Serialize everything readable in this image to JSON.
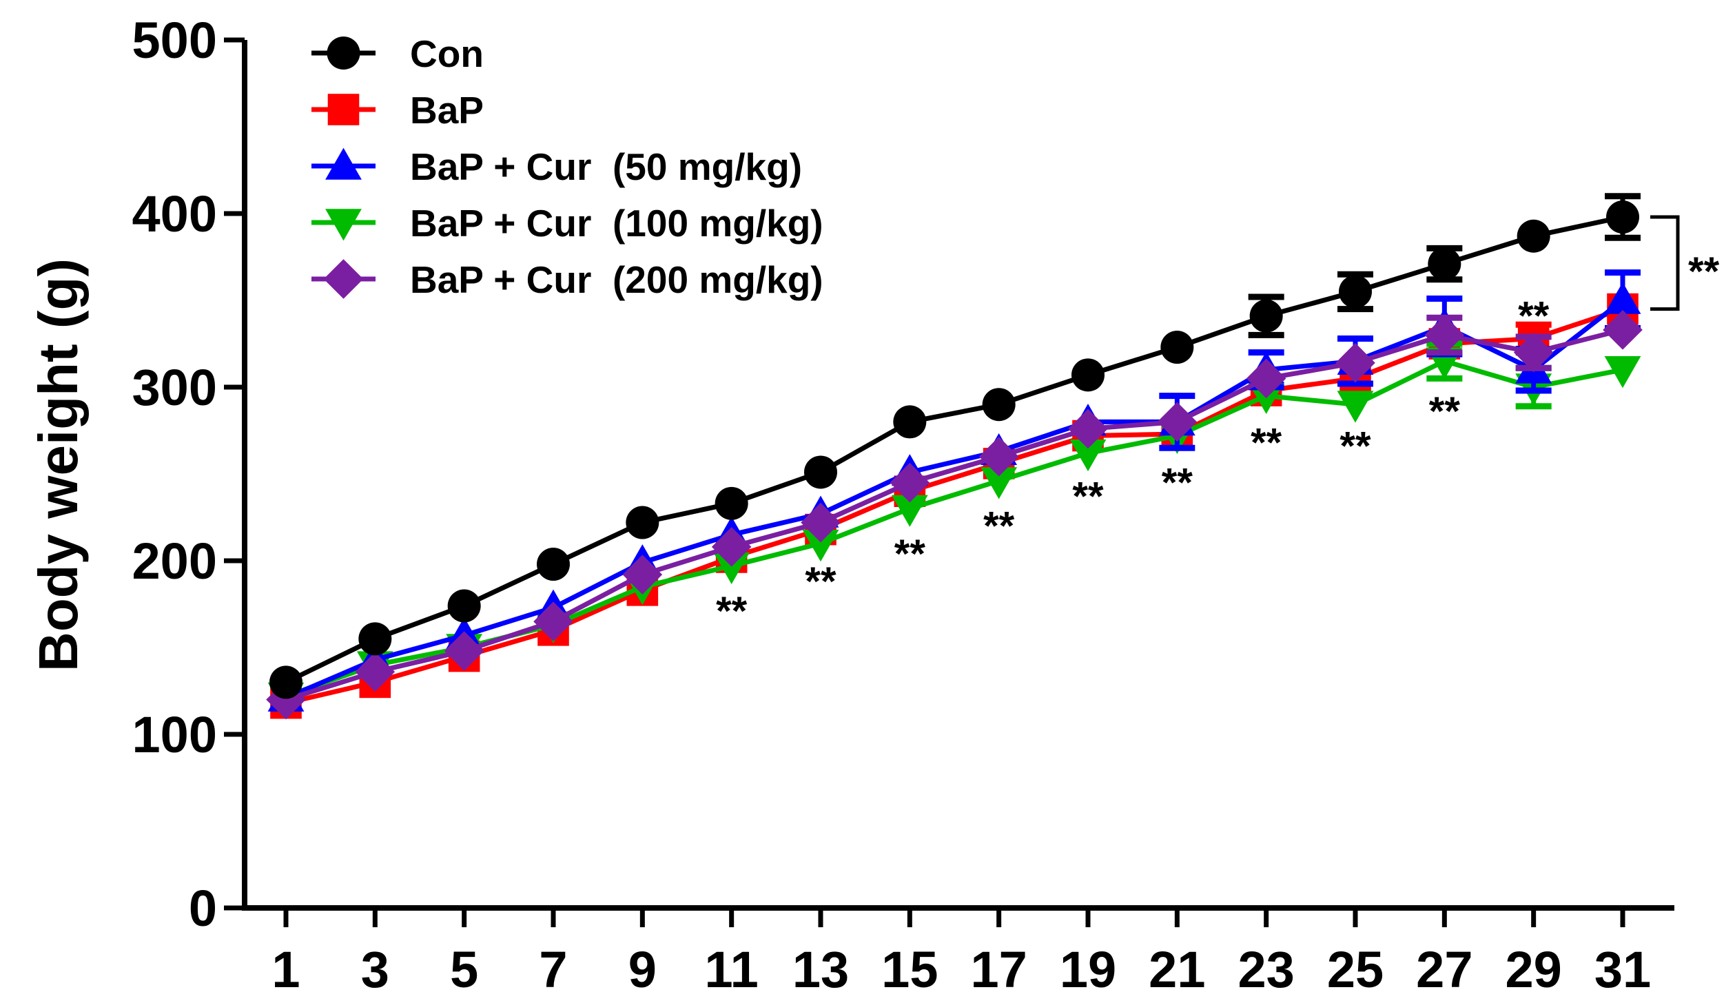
{
  "chart_data": {
    "type": "line",
    "title": "",
    "xlabel": "",
    "ylabel": "Body weight (g)",
    "xlim": [
      0,
      32
    ],
    "ylim": [
      0,
      500
    ],
    "x": [
      1,
      3,
      5,
      7,
      9,
      11,
      13,
      15,
      17,
      19,
      21,
      23,
      25,
      27,
      29,
      31
    ],
    "x_ticks": [
      "1",
      "3",
      "5",
      "7",
      "9",
      "11",
      "13",
      "15",
      "17",
      "19",
      "21",
      "23",
      "25",
      "27",
      "29",
      "31"
    ],
    "y_ticks": [
      "0",
      "100",
      "200",
      "300",
      "400",
      "500"
    ],
    "series": [
      {
        "name": "Con",
        "color": "#000000",
        "marker": "circle",
        "values": [
          130,
          155,
          174,
          198,
          222,
          233,
          251,
          280,
          290,
          307,
          323,
          341,
          355,
          371,
          387,
          398
        ],
        "errors": [
          0,
          0,
          0,
          0,
          0,
          0,
          0,
          0,
          0,
          0,
          0,
          11,
          10,
          9,
          0,
          12
        ]
      },
      {
        "name": "BaP",
        "color": "#ff0000",
        "marker": "square",
        "values": [
          118,
          130,
          145,
          160,
          183,
          202,
          218,
          240,
          256,
          272,
          273,
          298,
          305,
          325,
          328,
          345
        ],
        "errors": [
          0,
          0,
          0,
          0,
          0,
          0,
          0,
          0,
          0,
          0,
          0,
          0,
          0,
          0,
          8,
          0
        ]
      },
      {
        "name": "BaP + Cur  (50 mg/kg)",
        "color": "#0000ff",
        "marker": "triangle-up",
        "values": [
          121,
          143,
          157,
          173,
          199,
          215,
          227,
          251,
          263,
          280,
          280,
          310,
          315,
          335,
          310,
          350
        ],
        "errors": [
          0,
          0,
          0,
          0,
          0,
          0,
          0,
          0,
          0,
          0,
          15,
          10,
          13,
          16,
          12,
          16
        ]
      },
      {
        "name": "BaP + Cur  (100 mg/kg)",
        "color": "#00bb00",
        "marker": "triangle-down",
        "values": [
          122,
          140,
          150,
          163,
          185,
          197,
          210,
          230,
          246,
          262,
          272,
          295,
          290,
          315,
          300,
          310
        ],
        "errors": [
          0,
          0,
          0,
          0,
          0,
          0,
          0,
          0,
          0,
          0,
          0,
          0,
          0,
          10,
          11,
          0
        ]
      },
      {
        "name": "BaP + Cur  (200 mg/kg)",
        "color": "#7b1fa2",
        "marker": "diamond",
        "values": [
          120,
          136,
          148,
          165,
          192,
          208,
          222,
          245,
          260,
          276,
          280,
          305,
          314,
          330,
          320,
          333
        ],
        "errors": [
          0,
          0,
          0,
          0,
          0,
          0,
          0,
          0,
          0,
          0,
          0,
          0,
          0,
          10,
          9,
          0
        ]
      }
    ],
    "significance": {
      "label": "**",
      "points": [
        {
          "x": 11,
          "y": 175
        },
        {
          "x": 13,
          "y": 192
        },
        {
          "x": 15,
          "y": 208
        },
        {
          "x": 17,
          "y": 224
        },
        {
          "x": 19,
          "y": 241
        },
        {
          "x": 21,
          "y": 249
        },
        {
          "x": 23,
          "y": 272
        },
        {
          "x": 25,
          "y": 270
        },
        {
          "x": 27,
          "y": 290
        },
        {
          "x": 29,
          "y": 345
        }
      ],
      "bracket": {
        "x": 31,
        "y_top": 398,
        "y_bottom": 345
      }
    },
    "legend": {
      "position": "top-left"
    }
  }
}
